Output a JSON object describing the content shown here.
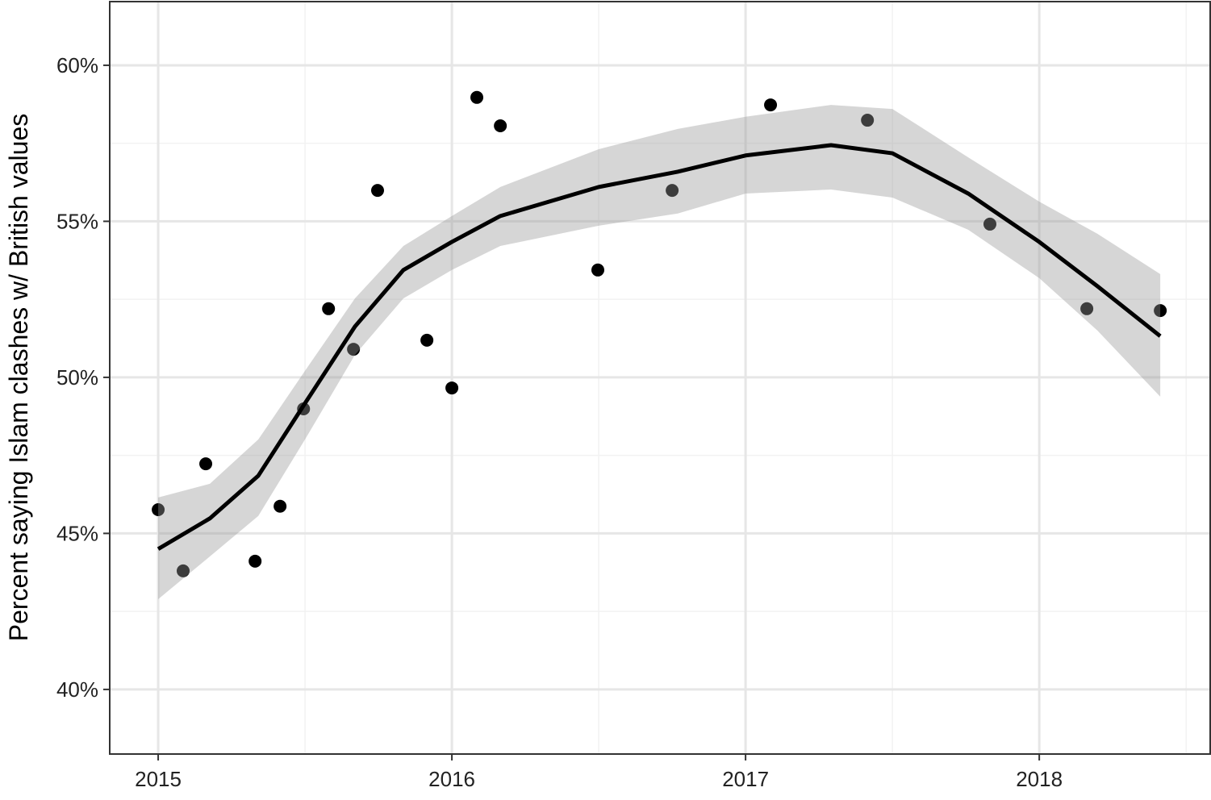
{
  "chart_data": {
    "type": "scatter",
    "ylabel": "Percent saying Islam clashes w/ British values",
    "xlim": [
      2014.835,
      2018.582
    ],
    "ylim": [
      37.93,
      62.04
    ],
    "xticks": [
      2015,
      2016,
      2017,
      2018
    ],
    "x_minor_ticks": [
      2015.5,
      2016.5,
      2017.5,
      2018.5
    ],
    "yticks": [
      {
        "value": 40,
        "label": "40%"
      },
      {
        "value": 45,
        "label": "45%"
      },
      {
        "value": 50,
        "label": "50%"
      },
      {
        "value": 55,
        "label": "55%"
      },
      {
        "value": 60,
        "label": "60%"
      }
    ],
    "y_minor_ticks": [
      42.5,
      47.5,
      52.5,
      57.5
    ],
    "grid": true,
    "point_color": "#000000",
    "band_color": "#999999",
    "line_color": "#000000",
    "points": {
      "x": [
        2015.0,
        2015.085,
        2015.162,
        2015.33,
        2015.415,
        2015.495,
        2015.58,
        2015.665,
        2015.747,
        2015.915,
        2016.0,
        2016.085,
        2016.165,
        2016.497,
        2016.75,
        2017.085,
        2017.415,
        2017.832,
        2018.162,
        2018.412
      ],
      "y": [
        45.76,
        43.8,
        47.23,
        44.11,
        45.87,
        48.99,
        52.2,
        50.9,
        55.99,
        51.19,
        49.66,
        58.97,
        58.06,
        53.44,
        55.99,
        58.73,
        58.24,
        54.91,
        52.2,
        52.14
      ]
    },
    "smooth": {
      "x": [
        2015.0,
        2015.176,
        2015.341,
        2015.5,
        2015.67,
        2015.835,
        2016.0,
        2016.165,
        2016.5,
        2016.769,
        2017.0,
        2017.291,
        2017.5,
        2017.758,
        2018.0,
        2018.198,
        2018.412
      ],
      "y": [
        44.5,
        45.48,
        46.85,
        49.17,
        51.63,
        53.44,
        54.34,
        55.17,
        56.1,
        56.59,
        57.11,
        57.44,
        57.18,
        55.89,
        54.34,
        52.92,
        51.32
      ],
      "lower": [
        42.89,
        44.26,
        45.56,
        48.01,
        50.72,
        52.53,
        53.44,
        54.21,
        54.86,
        55.25,
        55.89,
        56.02,
        55.76,
        54.73,
        53.18,
        51.5,
        49.38
      ],
      "upper": [
        46.15,
        46.59,
        48.01,
        50.21,
        52.53,
        54.21,
        55.17,
        56.1,
        57.31,
        57.96,
        58.35,
        58.73,
        58.6,
        57.05,
        55.63,
        54.6,
        53.31
      ]
    }
  }
}
